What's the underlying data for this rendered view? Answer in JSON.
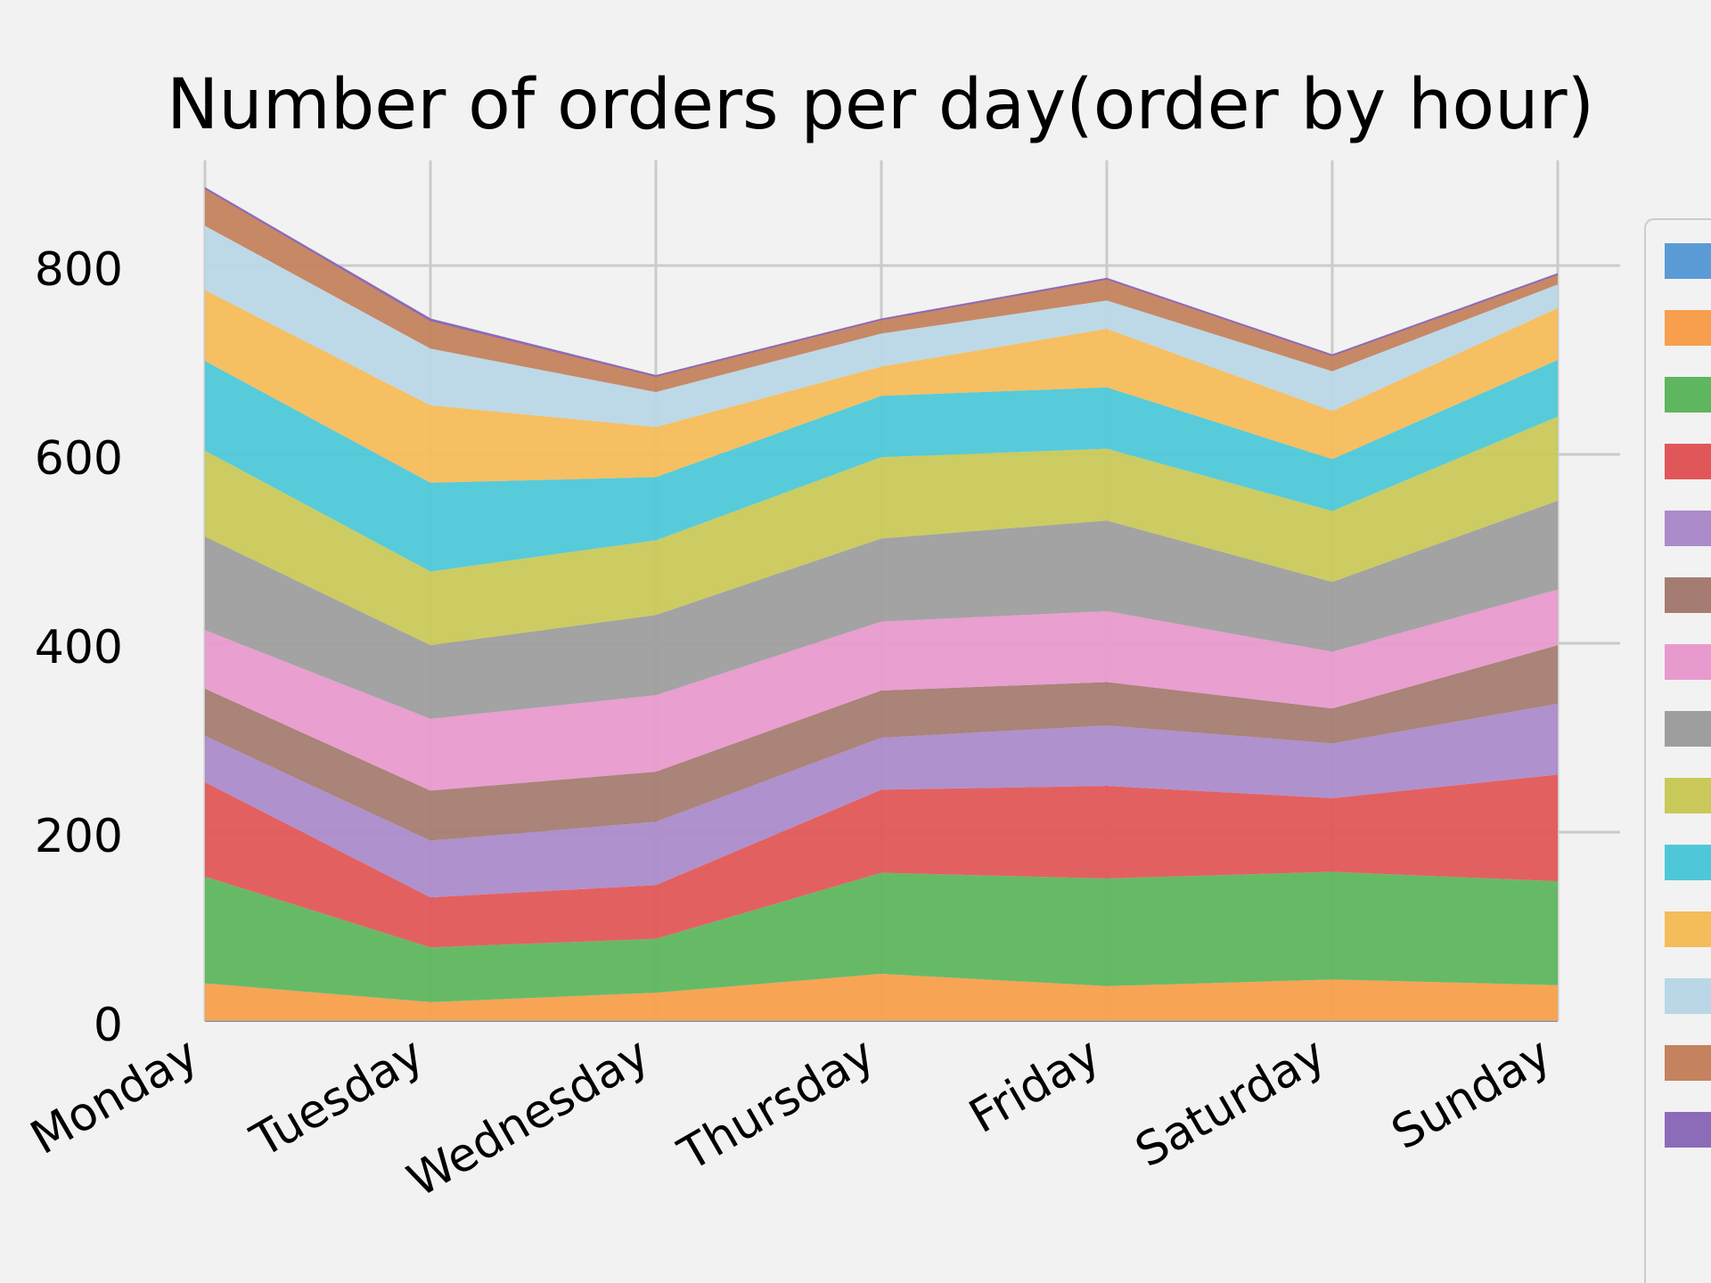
{
  "chart_data": {
    "type": "area",
    "stacked": true,
    "title": "Number of orders per day(order by hour)",
    "xlabel": "",
    "ylabel": "",
    "categories": [
      "Monday",
      "Tuesday",
      "Wednesday",
      "Thursday",
      "Friday",
      "Saturday",
      "Sunday"
    ],
    "yticks": [
      0,
      200,
      400,
      600,
      800
    ],
    "ylim": [
      0,
      880
    ],
    "grid": true,
    "legend_position": "right",
    "series": [
      {
        "values": [
          0,
          0,
          0,
          0,
          0,
          0,
          0
        ],
        "color": "#5b9bd5"
      },
      {
        "values": [
          40,
          20,
          30,
          50,
          37,
          44,
          38
        ],
        "color": "#f79f4c"
      },
      {
        "values": [
          113,
          58,
          57,
          107,
          114,
          114,
          110
        ],
        "color": "#5eb65e"
      },
      {
        "values": [
          100,
          53,
          57,
          88,
          98,
          78,
          113
        ],
        "color": "#e15759"
      },
      {
        "values": [
          49,
          60,
          67,
          55,
          64,
          58,
          75
        ],
        "color": "#ab8bca"
      },
      {
        "values": [
          50,
          53,
          53,
          50,
          46,
          37,
          62
        ],
        "color": "#a57c72"
      },
      {
        "values": [
          62,
          76,
          81,
          73,
          75,
          60,
          59
        ],
        "color": "#e89ace"
      },
      {
        "values": [
          99,
          78,
          85,
          88,
          96,
          74,
          94
        ],
        "color": "#9e9e9e"
      },
      {
        "values": [
          91,
          78,
          79,
          86,
          76,
          75,
          89
        ],
        "color": "#c9c95a"
      },
      {
        "values": [
          95,
          94,
          67,
          65,
          65,
          55,
          60
        ],
        "color": "#4ec8d8"
      },
      {
        "values": [
          75,
          82,
          53,
          31,
          62,
          51,
          55
        ],
        "color": "#f5bc5a"
      },
      {
        "values": [
          68,
          60,
          37,
          35,
          30,
          42,
          25
        ],
        "color": "#b9d7e6"
      },
      {
        "values": [
          40,
          30,
          17,
          15,
          23,
          17,
          11
        ],
        "color": "#c4825e"
      },
      {
        "values": [
          0,
          1,
          0,
          0,
          0,
          0,
          0
        ],
        "color": "#8c6bb8"
      }
    ]
  }
}
